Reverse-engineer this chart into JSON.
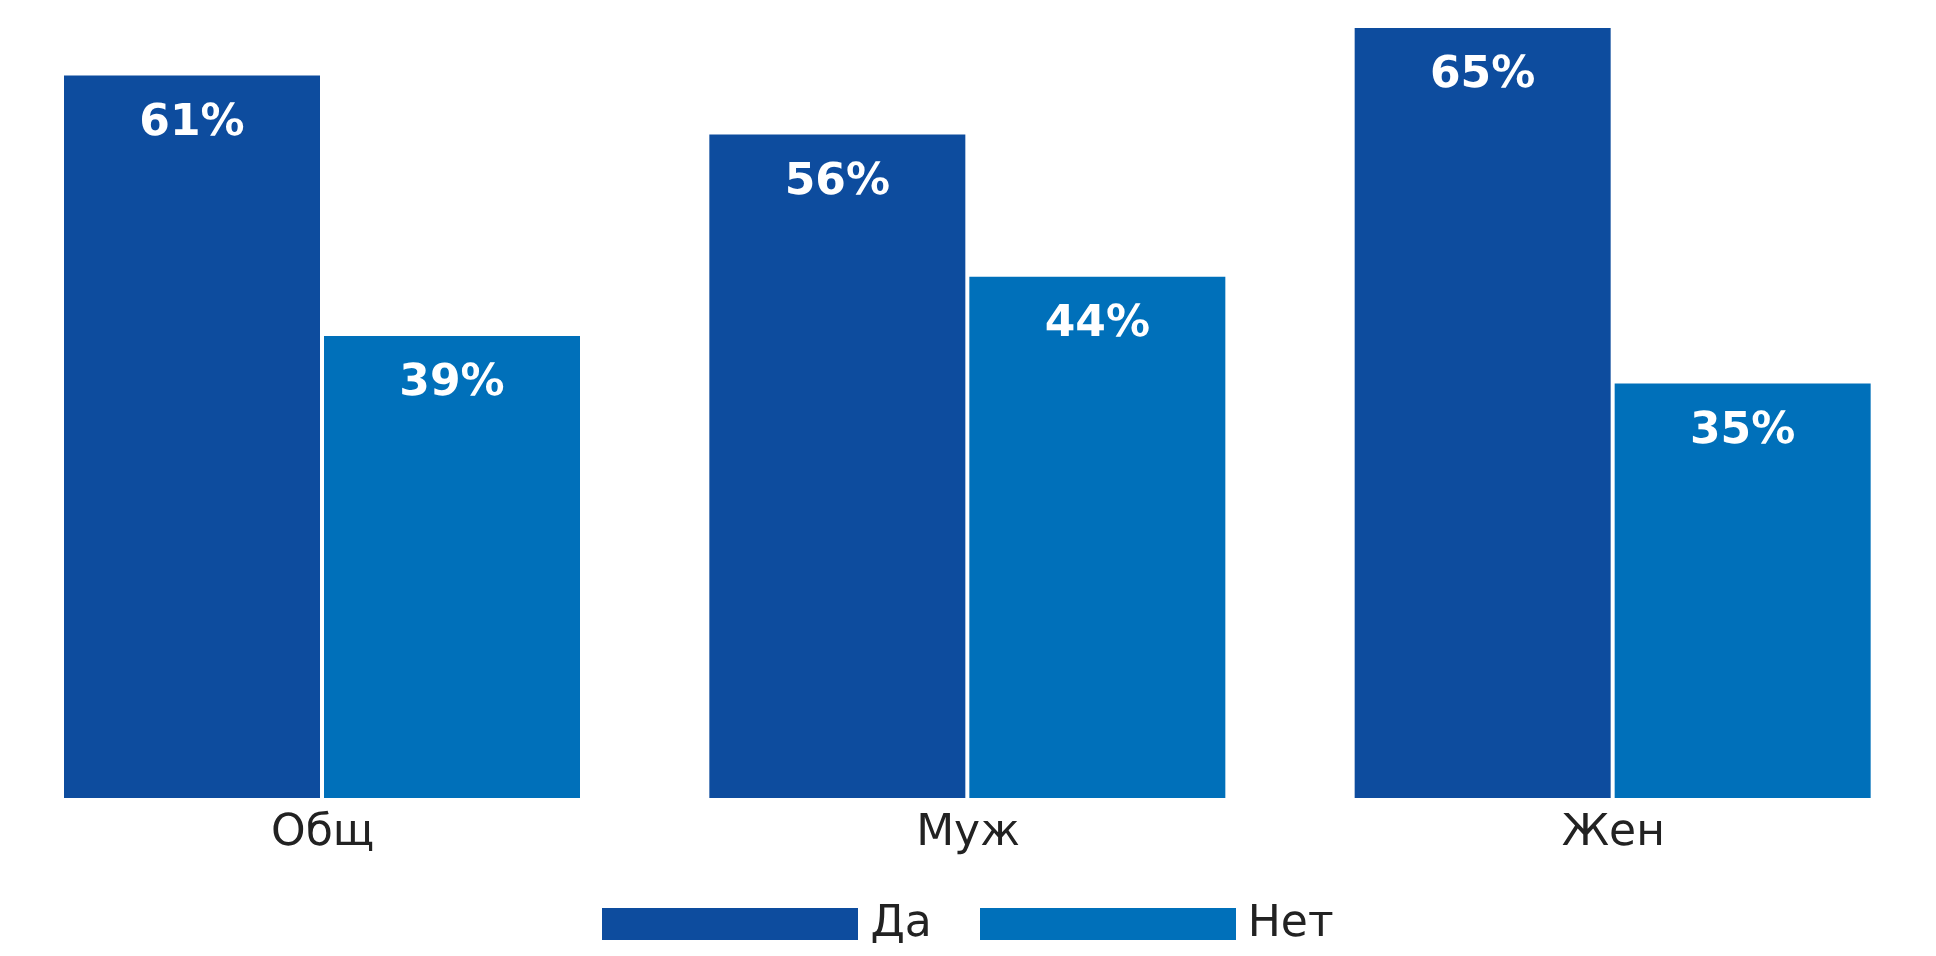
{
  "chart_data": {
    "type": "bar",
    "categories": [
      "Общ",
      "Муж",
      "Жен"
    ],
    "series": [
      {
        "name": "Да",
        "color": "#0d4c9e",
        "values": [
          61,
          56,
          65
        ],
        "value_labels": [
          "61%",
          "56%",
          "65%"
        ]
      },
      {
        "name": "Нет",
        "color": "#0070ba",
        "values": [
          39,
          44,
          35
        ],
        "value_labels": [
          "39%",
          "44%",
          "35%"
        ]
      }
    ],
    "legend": "bottom",
    "grid": false
  }
}
